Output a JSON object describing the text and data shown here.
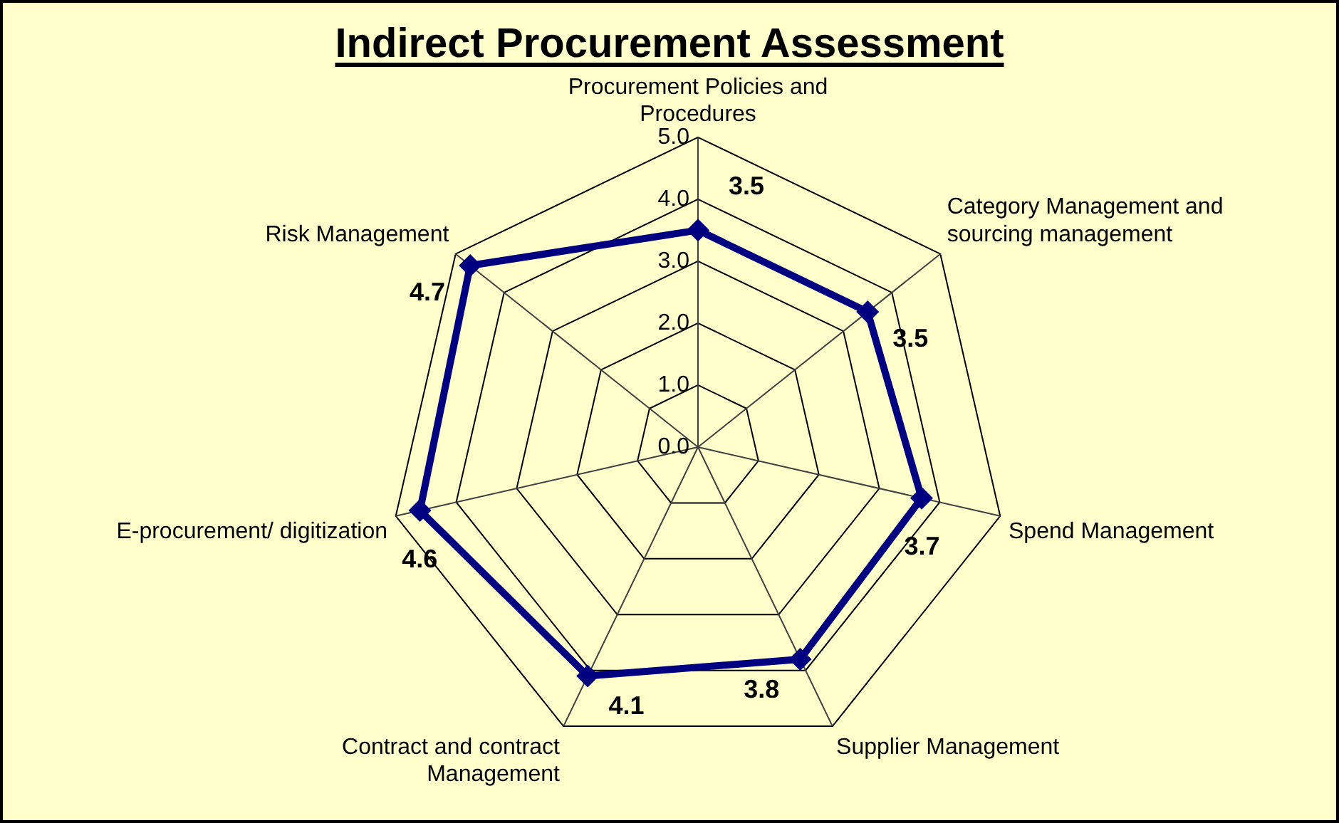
{
  "chart_data": {
    "type": "radar",
    "title": "Indirect Procurement Assessment",
    "categories": [
      "Procurement Policies and Procedures",
      "Category Management and sourcing management",
      "Spend Management",
      "Supplier Management",
      "Contract and contract Management",
      "E-procurement/ digitization",
      "Risk Management"
    ],
    "series": [
      {
        "color": "#000080",
        "values": [
          3.5,
          3.5,
          3.7,
          3.8,
          4.1,
          4.6,
          4.7
        ]
      }
    ],
    "ylim": [
      0,
      5
    ],
    "yticks": [
      {
        "value": 0,
        "label": "0.0"
      },
      {
        "value": 1,
        "label": "1.0"
      },
      {
        "value": 2,
        "label": "2.0"
      },
      {
        "value": 3,
        "label": "3.0"
      },
      {
        "value": 4,
        "label": "4.0"
      },
      {
        "value": 5,
        "label": "5.0"
      }
    ],
    "grid": true,
    "legend": false,
    "marker": "diamond",
    "line_style": "solid",
    "data_labels": true
  }
}
